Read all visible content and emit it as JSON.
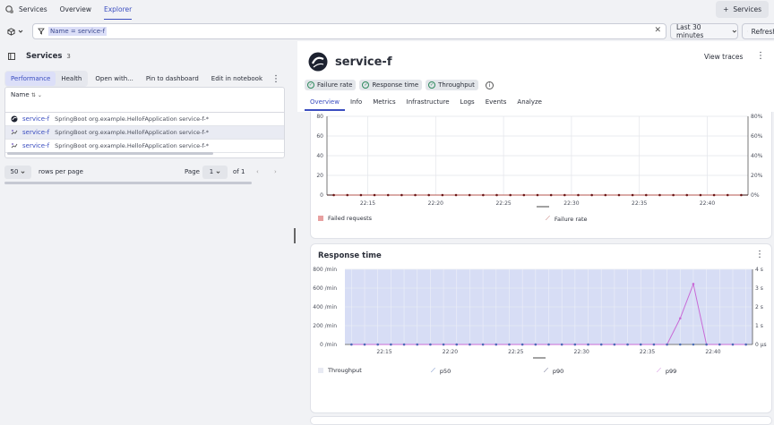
{
  "topbar": {
    "nav": [
      "Services",
      "Overview",
      "Explorer"
    ],
    "active": "Explorer",
    "services_button": "Services"
  },
  "filter": {
    "query": "Name = service-f",
    "timeframe": "Last 30 minutes",
    "refresh_label": "Refresh"
  },
  "left": {
    "title": "Services",
    "count": "3",
    "tabs": [
      "Performance",
      "Health"
    ],
    "active_tab": "Performance",
    "actions": [
      "Open with...",
      "Pin to dashboard",
      "Edit in notebook"
    ],
    "table": {
      "column": "Name",
      "rows": [
        {
          "name": "service-f",
          "desc": "SpringBoot org.example.HelloFApplication service-f-*",
          "icon": "service-logo-icon"
        },
        {
          "name": "service-f",
          "desc": "SpringBoot org.example.HelloFApplication service-f-*",
          "icon": "java-process-icon"
        },
        {
          "name": "service-f",
          "desc": "SpringBoot org.example.HelloFApplication service-f-*",
          "icon": "java-process-icon"
        }
      ]
    },
    "pager": {
      "size": "50",
      "rows_label": "rows per page",
      "page_label": "Page",
      "page": "1",
      "of": "of 1"
    }
  },
  "right": {
    "service_name": "service-f",
    "view_traces": "View traces",
    "chips": [
      "Failure rate",
      "Response time",
      "Throughput"
    ],
    "tabs": [
      "Overview",
      "Info",
      "Metrics",
      "Infrastructure",
      "Logs",
      "Events",
      "Analyze"
    ],
    "active_tab": "Overview"
  },
  "chart_data": [
    {
      "type": "bar",
      "title": "",
      "y_left_ticks": [
        "0",
        "20",
        "40",
        "60",
        "80"
      ],
      "y_right_ticks": [
        "0%",
        "20%",
        "40%",
        "60%",
        "80%"
      ],
      "x_ticks": [
        "22:15",
        "22:20",
        "22:25",
        "22:30",
        "22:35",
        "22:40"
      ],
      "ylim": [
        0,
        80
      ],
      "series": [
        {
          "name": "Failed requests",
          "values": [
            0,
            0,
            0,
            0,
            0,
            0,
            0,
            0,
            0,
            0,
            0,
            0,
            0,
            0,
            0,
            0,
            0,
            0,
            0,
            0,
            0,
            0,
            0,
            0,
            0,
            0,
            0,
            0,
            0,
            0,
            0
          ]
        },
        {
          "name": "Failure rate",
          "values": [
            0,
            0,
            0,
            0,
            0,
            0,
            0,
            0,
            0,
            0,
            0,
            0,
            0,
            0,
            0,
            0,
            0,
            0,
            0,
            0,
            0,
            0,
            0,
            0,
            0,
            0,
            0,
            0,
            0,
            0,
            0
          ]
        }
      ],
      "colors": {
        "failed": "#c0392b",
        "rate": "#b5554f"
      }
    },
    {
      "type": "line",
      "title": "Response time",
      "y_left_ticks": [
        "0 /min",
        "200 /min",
        "400 /min",
        "600 /min",
        "800 /min"
      ],
      "y_right_ticks": [
        "0 µs",
        "1 s",
        "2 s",
        "3 s",
        "4 s"
      ],
      "x_ticks": [
        "22:15",
        "22:20",
        "22:25",
        "22:30",
        "22:35",
        "22:40"
      ],
      "ylim": [
        0,
        800
      ],
      "series": [
        {
          "name": "Throughput",
          "values": [
            0,
            0,
            0,
            0,
            0,
            0,
            0,
            0,
            0,
            0,
            0,
            0,
            0,
            0,
            0,
            0,
            0,
            0,
            0,
            0,
            0,
            0,
            0,
            0,
            0,
            0,
            0,
            0,
            0,
            0,
            0
          ]
        },
        {
          "name": "p50",
          "values": [
            0,
            0,
            0,
            0,
            0,
            0,
            0,
            0,
            0,
            0,
            0,
            0,
            0,
            0,
            0,
            0,
            0,
            0,
            0,
            0,
            0,
            0,
            0,
            0,
            0,
            0,
            0,
            0,
            0,
            0,
            0
          ]
        },
        {
          "name": "p90",
          "values": [
            0,
            0,
            0,
            0,
            0,
            0,
            0,
            0,
            0,
            0,
            0,
            0,
            0,
            0,
            0,
            0,
            0,
            0,
            0,
            0,
            0,
            0,
            0,
            0,
            0,
            0,
            0,
            0,
            0,
            0,
            0
          ]
        },
        {
          "name": "p99",
          "values_seconds": [
            0,
            0,
            0,
            0,
            0,
            0,
            0,
            0,
            0,
            0,
            0,
            0,
            0,
            0,
            0,
            0,
            0,
            0,
            0,
            0,
            0,
            0,
            0,
            0,
            0,
            1.6,
            3.7,
            0,
            0,
            0,
            0
          ]
        }
      ],
      "colors": {
        "throughput": "#cfd6f3",
        "p50": "#4c6fb8",
        "p90": "#3a3f6b",
        "p99": "#c86ad6"
      }
    }
  ]
}
